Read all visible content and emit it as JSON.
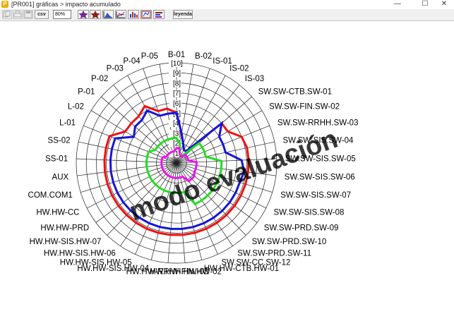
{
  "window": {
    "title": "[PR001] gráficas > impacto acumulado",
    "app_icon": "P",
    "minimize_glyph": "—",
    "maximize_glyph": "☐",
    "close_glyph": "✕"
  },
  "toolbar": {
    "copy_icon": "copy-icon",
    "print_icon": "print-icon",
    "save_icon": "save-icon",
    "csv_label": "csv",
    "zoom_value": "80%",
    "legend_label": "leyenda",
    "chart_buttons": [
      "star-purple-icon",
      "star-red-icon",
      "area-chart-icon",
      "line-chart-icon",
      "bar-chart-icon",
      "radar-chart-icon",
      "bar-flag-icon"
    ]
  },
  "watermark": "modo evaluación",
  "colors": {
    "red": "#ee1111",
    "blue": "#1515d9",
    "green": "#22dd22",
    "magenta": "#ee11ee",
    "watermark": "#3b3bd8"
  },
  "chart_data": {
    "type": "radar",
    "rmax": 10,
    "radial_ticks": [
      "[1]",
      "[2]",
      "[3]",
      "[4]",
      "[5]",
      "[6]",
      "[7]",
      "[8]",
      "[9]",
      "[10]"
    ],
    "categories": [
      "B-01",
      "B-02",
      "IS-01",
      "IS-02",
      "IS-03",
      "SW.SW-CTB.SW-01",
      "SW.SW-FIN.SW-02",
      "SW.SW-RRHH.SW-03",
      "SW.SW-SIS.SW-04",
      "SW.SW-SIS.SW-05",
      "SW.SW-SIS.SW-06",
      "SW.SW-SIS.SW-07",
      "SW.SW-SIS.SW-08",
      "SW.SW-PRD.SW-09",
      "SW.SW-PRD.SW-10",
      "SW.SW-PRD.SW-11",
      "SW.SW-CC.SW-12",
      "HW.HW-CTB.HW-01",
      "HW.HW-FIN.HW-02",
      "HW.HW-RRHH.HW-03",
      "HW.HW-SIS.HW-04",
      "HW.HW-SIS.HW-05",
      "HW.HW-SIS.HW-06",
      "HW.HW-SIS.HW-07",
      "HW.HW-PRD",
      "HW.HW-CC",
      "COM.COM1",
      "AUX",
      "SS-01",
      "SS-02",
      "L-01",
      "L-02",
      "P-01",
      "P-02",
      "P-03",
      "P-04",
      "P-05"
    ],
    "series": [
      {
        "color": "#ee1111",
        "values": [
          5,
          3,
          2,
          1.5,
          1.5,
          6,
          6,
          7,
          7.2,
          7.2,
          7.2,
          7.2,
          7.2,
          7.2,
          7.2,
          7.2,
          7.2,
          7.2,
          7.2,
          7.2,
          7.2,
          7.2,
          7.2,
          7.2,
          7.2,
          7.2,
          7.2,
          7.2,
          7.2,
          7.2,
          7.2,
          6,
          6,
          6,
          6.5,
          5.5,
          5.5
        ]
      },
      {
        "color": "#1515d9",
        "values": [
          5,
          3,
          2,
          1.5,
          1.5,
          6,
          5,
          5,
          5,
          6.5,
          6.8,
          6.6,
          6.6,
          6.6,
          6.6,
          6.6,
          6.6,
          6.6,
          6.6,
          6.6,
          6.6,
          6.6,
          6.6,
          6.6,
          6.6,
          6.6,
          6.6,
          6.6,
          6.6,
          6.6,
          6.6,
          5,
          5.5,
          5.5,
          6,
          5,
          5
        ]
      },
      {
        "color": "#22dd22",
        "values": [
          2.5,
          2,
          1,
          0.8,
          1,
          3,
          3,
          3,
          3,
          4.5,
          4.5,
          4.5,
          4.5,
          4.5,
          4.5,
          4.5,
          4.5,
          3,
          3,
          3,
          3,
          3,
          3,
          3,
          3,
          3,
          3,
          3,
          3,
          3,
          3,
          2.5,
          2.5,
          2.5,
          2.5,
          2.5,
          2.5
        ]
      },
      {
        "color": "#ee11ee",
        "values": [
          1.5,
          1.5,
          1,
          0.8,
          0.8,
          1.2,
          1.2,
          1.2,
          1.2,
          2,
          2,
          2,
          2,
          2.2,
          2.2,
          2.2,
          1.5,
          1.5,
          1.5,
          1.5,
          1.5,
          1.5,
          1.5,
          1.5,
          1.5,
          1.5,
          1.5,
          1.5,
          1.5,
          1.5,
          1.5,
          1.2,
          1.2,
          1.2,
          1.2,
          1.2,
          1.2
        ]
      }
    ]
  }
}
